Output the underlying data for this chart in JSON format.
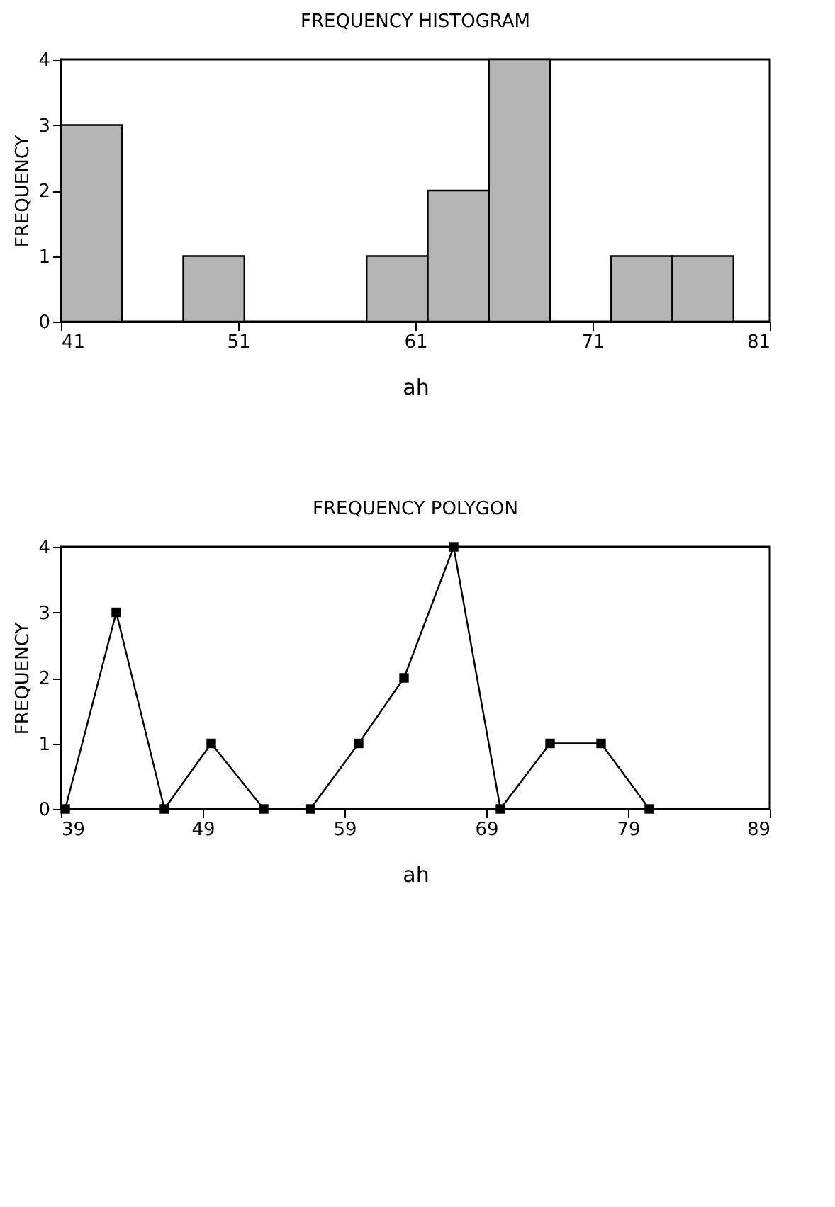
{
  "chart_data": [
    {
      "type": "histogram",
      "title": "FREQUENCY HISTOGRAM",
      "xlabel": "ah",
      "ylabel": "FREQUENCY",
      "bins": [
        41,
        44.45,
        47.9,
        51.35,
        54.8,
        58.25,
        61.7,
        65.15,
        68.6,
        72.05,
        75.5,
        78.95
      ],
      "values": [
        3,
        0,
        1,
        0,
        0,
        1,
        2,
        4,
        0,
        1,
        1
      ],
      "color": "#b4b4b4",
      "xlim": [
        41,
        81
      ],
      "xticks": [
        41,
        51,
        61,
        71,
        81
      ],
      "ylim": [
        0,
        4
      ],
      "yticks": [
        0,
        1,
        2,
        3,
        4
      ],
      "grid": false
    },
    {
      "type": "line",
      "title": "FREQUENCY POLYGON",
      "xlabel": "ah",
      "ylabel": "FREQUENCY",
      "x": [
        39.3,
        42.9,
        46.3,
        49.6,
        53.3,
        56.6,
        60.0,
        63.2,
        66.7,
        70.0,
        73.5,
        77.1,
        80.5
      ],
      "values": [
        0,
        3,
        0,
        1,
        0,
        0,
        1,
        2,
        4,
        0,
        1,
        1,
        0
      ],
      "color": "#000000",
      "marker": "square",
      "line_style": "solid",
      "xlim": [
        39,
        89
      ],
      "xticks": [
        39,
        49,
        59,
        69,
        79,
        89
      ],
      "ylim": [
        0,
        4
      ],
      "yticks": [
        0,
        1,
        2,
        3,
        4
      ],
      "grid": false
    }
  ]
}
